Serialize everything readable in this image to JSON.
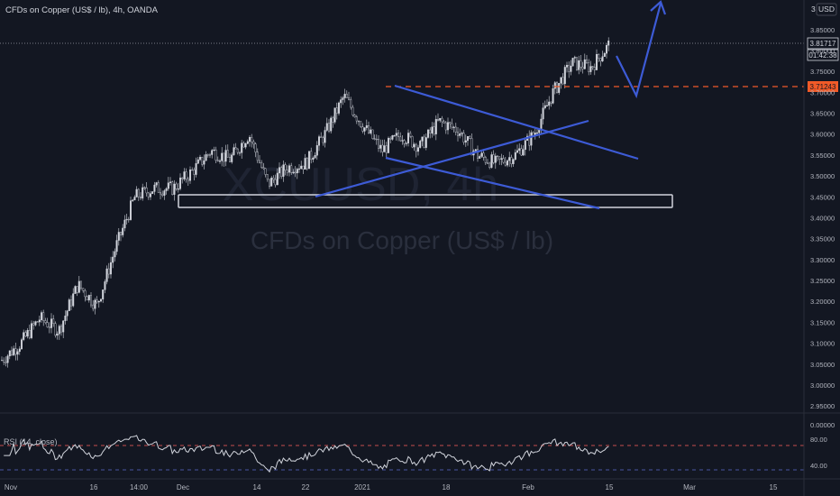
{
  "header": {
    "title": "CFDs on Copper (US$ / lb), 4h, OANDA",
    "currency": "USD",
    "currency_prefix": "3"
  },
  "watermark": {
    "symbol": "XCUUSD, 4h",
    "name": "CFDs on Copper (US$ / lb)"
  },
  "price_axis": {
    "ticks": [
      "3.85000",
      "3.80000",
      "3.75000",
      "3.70000",
      "3.65000",
      "3.60000",
      "3.55000",
      "3.50000",
      "3.45000",
      "3.40000",
      "3.35000",
      "3.30000",
      "3.25000",
      "3.20000",
      "3.15000",
      "3.10000",
      "3.05000",
      "3.00000",
      "2.95000",
      "0.00000"
    ],
    "last_price": "3.81717",
    "countdown": "01:42:38",
    "level_price": "3.71243"
  },
  "rsi": {
    "label": "RSI (14, close)",
    "ticks": [
      "80.00",
      "40.00"
    ]
  },
  "time_axis": {
    "labels": [
      "Nov",
      "16",
      "14:00",
      "Dec",
      "14",
      "22",
      "2021",
      "18",
      "Feb",
      "15",
      "Mar",
      "15"
    ]
  },
  "colors": {
    "background": "#131722",
    "candle": "#d1d4dc",
    "drawing": "#3d5bd6",
    "level": "#f05a28",
    "rsi_line": "#d1d4dc",
    "rsi_upper": "#c54d4d",
    "rsi_lower": "#4a55a2"
  },
  "chart_data": {
    "type": "candlestick",
    "symbol": "XCUUSD",
    "timeframe": "4h",
    "ylim": [
      2.93,
      3.88
    ],
    "close_path": [
      {
        "x": "Nov 1",
        "y": 3.06
      },
      {
        "x": "Nov 6",
        "y": 3.1
      },
      {
        "x": "Nov 10",
        "y": 3.16
      },
      {
        "x": "Nov 14",
        "y": 3.13
      },
      {
        "x": "Nov 20",
        "y": 3.24
      },
      {
        "x": "Nov 24",
        "y": 3.19
      },
      {
        "x": "Nov 27",
        "y": 3.33
      },
      {
        "x": "Nov 30",
        "y": 3.45
      },
      {
        "x": "Dec 4",
        "y": 3.47
      },
      {
        "x": "Dec 9",
        "y": 3.47
      },
      {
        "x": "Dec 13",
        "y": 3.51
      },
      {
        "x": "Dec 16",
        "y": 3.56
      },
      {
        "x": "Dec 19",
        "y": 3.54
      },
      {
        "x": "Dec 21",
        "y": 3.6
      },
      {
        "x": "Dec 23",
        "y": 3.48
      },
      {
        "x": "Dec 26",
        "y": 3.52
      },
      {
        "x": "Dec 30",
        "y": 3.53
      },
      {
        "x": "Jan 4",
        "y": 3.6
      },
      {
        "x": "Jan 7",
        "y": 3.69
      },
      {
        "x": "Jan 9",
        "y": 3.62
      },
      {
        "x": "Jan 12",
        "y": 3.56
      },
      {
        "x": "Jan 16",
        "y": 3.6
      },
      {
        "x": "Jan 18",
        "y": 3.57
      },
      {
        "x": "Jan 22",
        "y": 3.63
      },
      {
        "x": "Jan 25",
        "y": 3.61
      },
      {
        "x": "Jan 28",
        "y": 3.55
      },
      {
        "x": "Feb 2",
        "y": 3.53
      },
      {
        "x": "Feb 5",
        "y": 3.55
      },
      {
        "x": "Feb 8",
        "y": 3.6
      },
      {
        "x": "Feb 10",
        "y": 3.7
      },
      {
        "x": "Feb 12",
        "y": 3.77
      },
      {
        "x": "Feb 14",
        "y": 3.76
      },
      {
        "x": "Feb 15",
        "y": 3.817
      }
    ],
    "last_price": 3.81717,
    "resistance_level": 3.71243,
    "support_zone": [
      3.42,
      3.455
    ],
    "rsi_levels": [
      70,
      30
    ],
    "rsi_ticks": [
      80,
      40
    ]
  }
}
